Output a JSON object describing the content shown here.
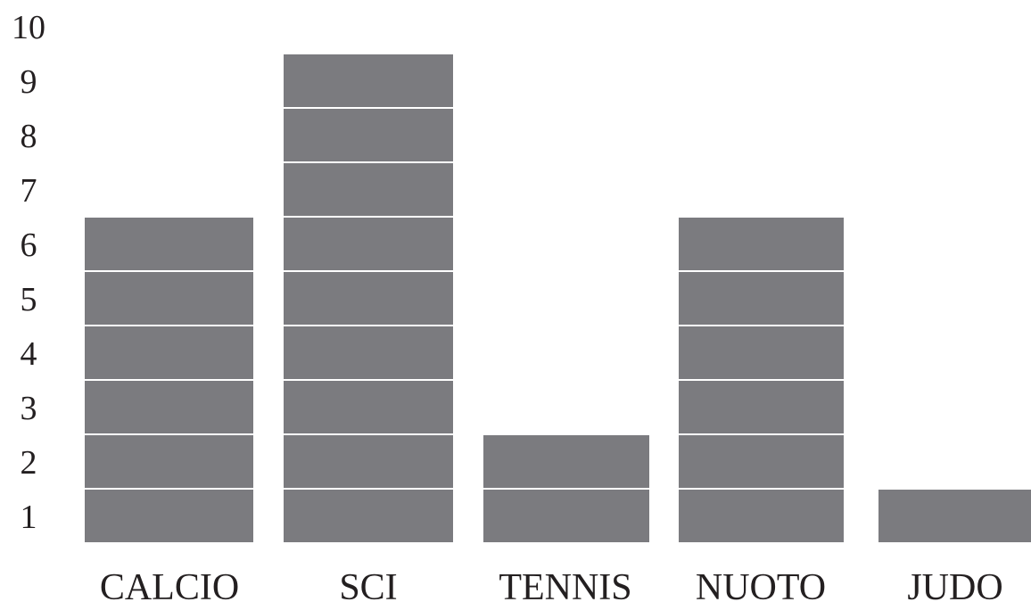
{
  "chart_data": {
    "type": "bar",
    "categories": [
      "CALCIO",
      "SCI",
      "TENNIS",
      "NUOTO",
      "JUDO"
    ],
    "values": [
      6,
      9,
      2,
      6,
      1
    ],
    "y_ticks": [
      "1",
      "2",
      "3",
      "4",
      "5",
      "6",
      "7",
      "8",
      "9",
      "10"
    ],
    "ylim": [
      0,
      10
    ],
    "grid": false,
    "style": "stacked unit blocks",
    "bar_color": "#7b7b7f",
    "separator_color": "#ffffff"
  }
}
